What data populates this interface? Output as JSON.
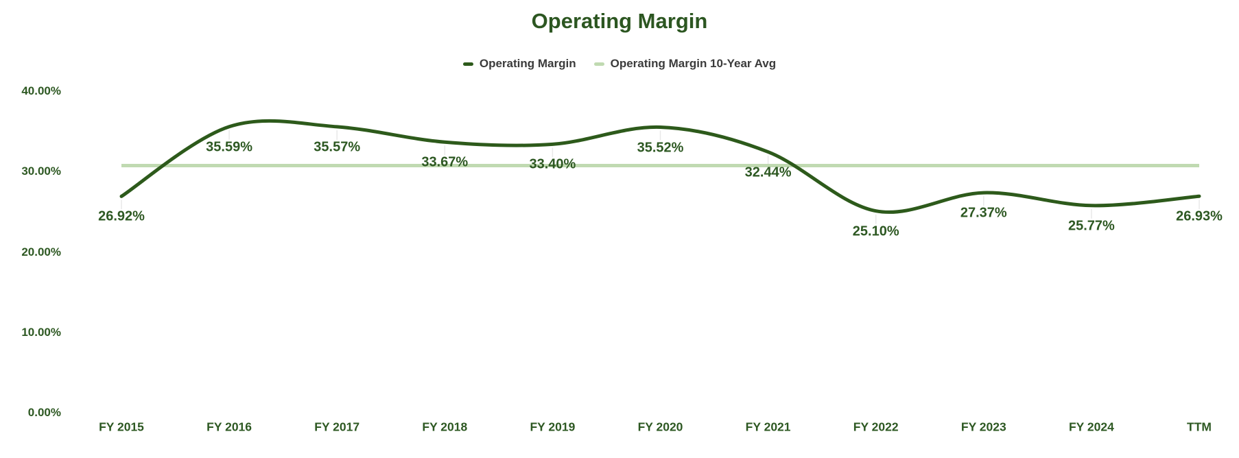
{
  "title": "Operating Margin",
  "colors": {
    "background": "#ffffff",
    "series_line": "#2d5a1b",
    "average_line": "#c0dab1",
    "title_text": "#2c5621",
    "axis_text": "#2d5822",
    "data_label_text": "#2d5822",
    "legend_text": "#3b3b3b",
    "point_tick": "#e8e8e8"
  },
  "legend": {
    "items": [
      {
        "label": "Operating Margin",
        "swatch_color": "#2d5a1b"
      },
      {
        "label": "Operating Margin 10-Year Avg",
        "swatch_color": "#c0dab1"
      }
    ]
  },
  "chart_data": {
    "type": "line",
    "title": "Operating Margin",
    "categories": [
      "FY 2015",
      "FY 2016",
      "FY 2017",
      "FY 2018",
      "FY 2019",
      "FY 2020",
      "FY 2021",
      "FY 2022",
      "FY 2023",
      "FY 2024",
      "TTM"
    ],
    "series": [
      {
        "name": "Operating Margin",
        "values": [
          26.92,
          35.59,
          35.57,
          33.67,
          33.4,
          35.52,
          32.44,
          25.1,
          27.37,
          25.77,
          26.93
        ],
        "point_labels": [
          "26.92%",
          "35.59%",
          "35.57%",
          "33.67%",
          "33.40%",
          "35.52%",
          "32.44%",
          "25.10%",
          "27.37%",
          "25.77%",
          "26.93%"
        ],
        "style": "smooth-line"
      },
      {
        "name": "Operating Margin 10-Year Avg",
        "constant_value": 30.75,
        "style": "horizontal-line"
      }
    ],
    "xlabel": "",
    "ylabel": "",
    "ylim": [
      0,
      40
    ],
    "yticks": [
      {
        "value": 0,
        "label": "0.00%"
      },
      {
        "value": 10,
        "label": "10.00%"
      },
      {
        "value": 20,
        "label": "20.00%"
      },
      {
        "value": 30,
        "label": "30.00%"
      },
      {
        "value": 40,
        "label": "40.00%"
      }
    ],
    "grid": false,
    "legend_position": "top"
  }
}
